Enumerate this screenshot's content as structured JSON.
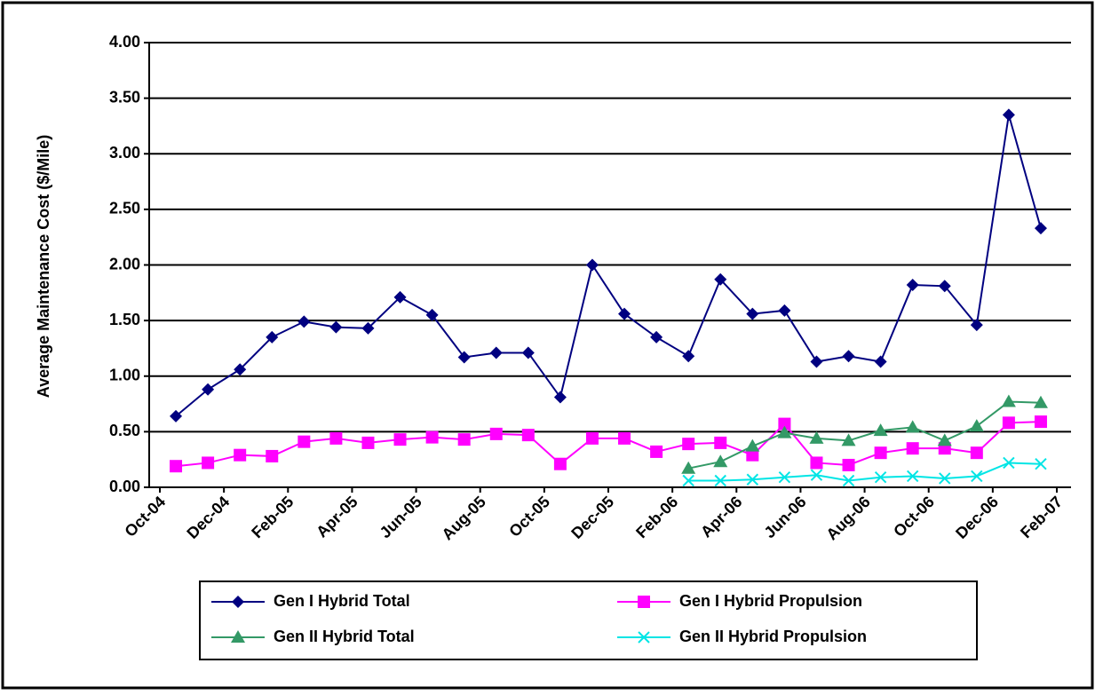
{
  "chart_data": {
    "type": "line",
    "y_label": "Average Maintenance Cost ($/Mile)",
    "x": [
      "2004-10",
      "2004-11",
      "2004-12",
      "2005-01",
      "2005-02",
      "2005-03",
      "2005-04",
      "2005-05",
      "2005-06",
      "2005-07",
      "2005-08",
      "2005-09",
      "2005-10",
      "2005-11",
      "2005-12",
      "2006-01",
      "2006-02",
      "2006-03",
      "2006-04",
      "2006-05",
      "2006-06",
      "2006-07",
      "2006-08",
      "2006-09",
      "2006-10",
      "2006-11",
      "2006-12",
      "2007-01"
    ],
    "xlim": [
      "2004-10",
      "2007-02"
    ],
    "xticks": [
      {
        "value": "2004-10",
        "label": "Oct-04"
      },
      {
        "value": "2004-12",
        "label": "Dec-04"
      },
      {
        "value": "2005-02",
        "label": "Feb-05"
      },
      {
        "value": "2005-04",
        "label": "Apr-05"
      },
      {
        "value": "2005-06",
        "label": "Jun-05"
      },
      {
        "value": "2005-08",
        "label": "Aug-05"
      },
      {
        "value": "2005-10",
        "label": "Oct-05"
      },
      {
        "value": "2005-12",
        "label": "Dec-05"
      },
      {
        "value": "2006-02",
        "label": "Feb-06"
      },
      {
        "value": "2006-04",
        "label": "Apr-06"
      },
      {
        "value": "2006-06",
        "label": "Jun-06"
      },
      {
        "value": "2006-08",
        "label": "Aug-06"
      },
      {
        "value": "2006-10",
        "label": "Oct-06"
      },
      {
        "value": "2006-12",
        "label": "Dec-06"
      },
      {
        "value": "2007-02",
        "label": "Feb-07"
      }
    ],
    "ylim": [
      0,
      4
    ],
    "yticks": [
      {
        "value": 0,
        "label": "0.00"
      },
      {
        "value": 0.5,
        "label": "0.50"
      },
      {
        "value": 1,
        "label": "1.00"
      },
      {
        "value": 1.5,
        "label": "1.50"
      },
      {
        "value": 2,
        "label": "2.00"
      },
      {
        "value": 2.5,
        "label": "2.50"
      },
      {
        "value": 3,
        "label": "3.00"
      },
      {
        "value": 3.5,
        "label": "3.50"
      },
      {
        "value": 4,
        "label": "4.00"
      }
    ],
    "grid": true,
    "legend": "bottom",
    "series": [
      {
        "name": "Gen I Hybrid Total",
        "color": "#000080",
        "marker": "diamond",
        "values": [
          0.64,
          0.88,
          1.06,
          1.35,
          1.49,
          1.44,
          1.43,
          1.71,
          1.55,
          1.17,
          1.21,
          1.21,
          0.81,
          2.0,
          1.56,
          1.35,
          1.18,
          1.87,
          1.56,
          1.59,
          1.13,
          1.18,
          1.13,
          1.82,
          1.81,
          1.46,
          3.35,
          2.33
        ]
      },
      {
        "name": "Gen I Hybrid Propulsion",
        "color": "#ff00ff",
        "marker": "square",
        "values": [
          0.19,
          0.22,
          0.29,
          0.28,
          0.41,
          0.44,
          0.4,
          0.43,
          0.45,
          0.43,
          0.48,
          0.47,
          0.21,
          0.44,
          0.44,
          0.32,
          0.39,
          0.4,
          0.29,
          0.57,
          0.22,
          0.2,
          0.31,
          0.35,
          0.35,
          0.31,
          0.58,
          0.59
        ]
      },
      {
        "name": "Gen II Hybrid Total",
        "color": "#339966",
        "marker": "triangle",
        "values": [
          null,
          null,
          null,
          null,
          null,
          null,
          null,
          null,
          null,
          null,
          null,
          null,
          null,
          null,
          null,
          null,
          0.17,
          0.23,
          0.37,
          0.49,
          0.44,
          0.42,
          0.51,
          0.54,
          0.42,
          0.55,
          0.77,
          0.76
        ]
      },
      {
        "name": "Gen II Hybrid Propulsion",
        "color": "#00e5e5",
        "marker": "x",
        "values": [
          null,
          null,
          null,
          null,
          null,
          null,
          null,
          null,
          null,
          null,
          null,
          null,
          null,
          null,
          null,
          null,
          0.06,
          0.06,
          0.07,
          0.09,
          0.11,
          0.06,
          0.09,
          0.1,
          0.08,
          0.1,
          0.22,
          0.21
        ]
      }
    ]
  }
}
